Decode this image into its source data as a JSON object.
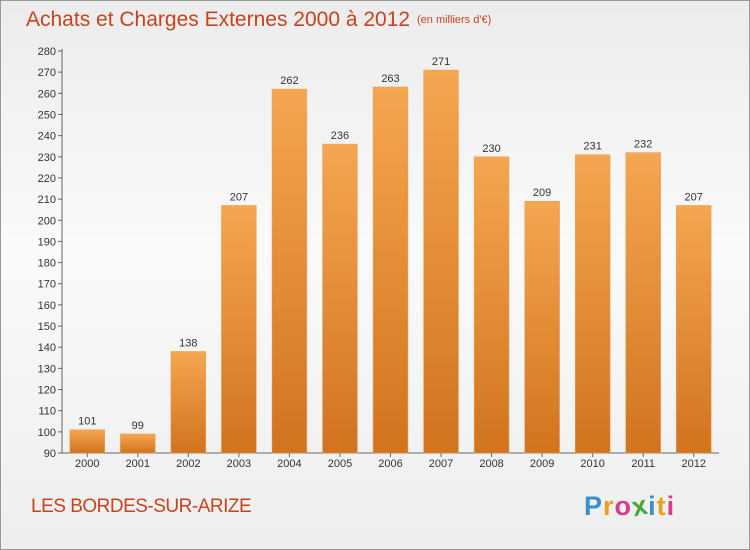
{
  "header": {
    "title": "Achats et Charges Externes 2000 à 2012",
    "unit": "(en milliers d'€)"
  },
  "commune": "LES BORDES-SUR-ARIZE",
  "logo": {
    "letters": [
      "P",
      "r",
      "o",
      "x",
      "i",
      "t",
      "i"
    ],
    "colors": [
      "#3a8fd1",
      "#e8a020",
      "#d93c8a",
      "#46a83a",
      "#3a8fd1",
      "#e8a020",
      "#d93c8a"
    ]
  },
  "colors": {
    "bar_top": "#f5a650",
    "bar_bottom": "#d2731e",
    "text_accent": "#c8431d",
    "axis": "#666666"
  },
  "chart_data": {
    "type": "bar",
    "categories": [
      "2000",
      "2001",
      "2002",
      "2003",
      "2004",
      "2005",
      "2006",
      "2007",
      "2008",
      "2009",
      "2010",
      "2011",
      "2012"
    ],
    "values": [
      101,
      99,
      138,
      207,
      262,
      236,
      263,
      271,
      230,
      209,
      231,
      232,
      207
    ],
    "ylim": [
      90,
      280
    ],
    "ytick_step": 10,
    "grid": false,
    "value_labels": true
  }
}
